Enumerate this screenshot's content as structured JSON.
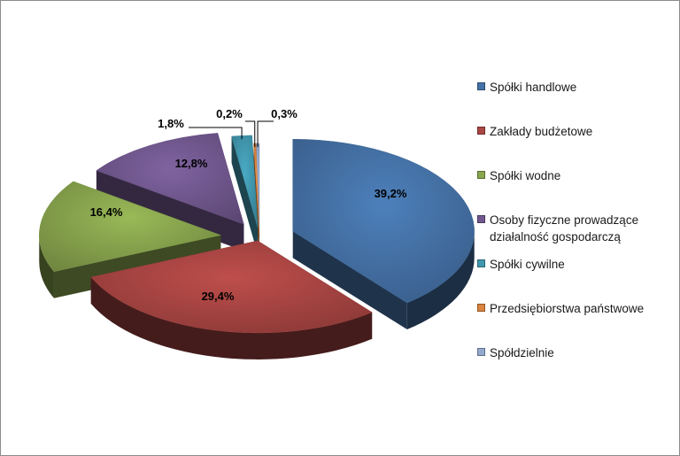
{
  "chart_data": {
    "type": "pie",
    "title": "",
    "categories": [
      "Spółki handlowe",
      "Zakłady budżetowe",
      "Spółki wodne",
      "Osoby fizyczne prowadzące działalność gospodarczą",
      "Spółki cywilne",
      "Przedsiębiorstwa państwowe",
      "Spółdzielnie"
    ],
    "values": [
      39.2,
      29.4,
      16.4,
      12.8,
      1.8,
      0.2,
      0.3
    ],
    "data_labels": [
      "39,2%",
      "29,4%",
      "16,4%",
      "12,8%",
      "1,8%",
      "0,2%",
      "0,3%"
    ],
    "colors": [
      "#4572A7",
      "#AA4643",
      "#89A54E",
      "#71588F",
      "#4198AF",
      "#DB843D",
      "#93A9CF"
    ],
    "legend_position": "right",
    "style": "3d-exploded"
  }
}
